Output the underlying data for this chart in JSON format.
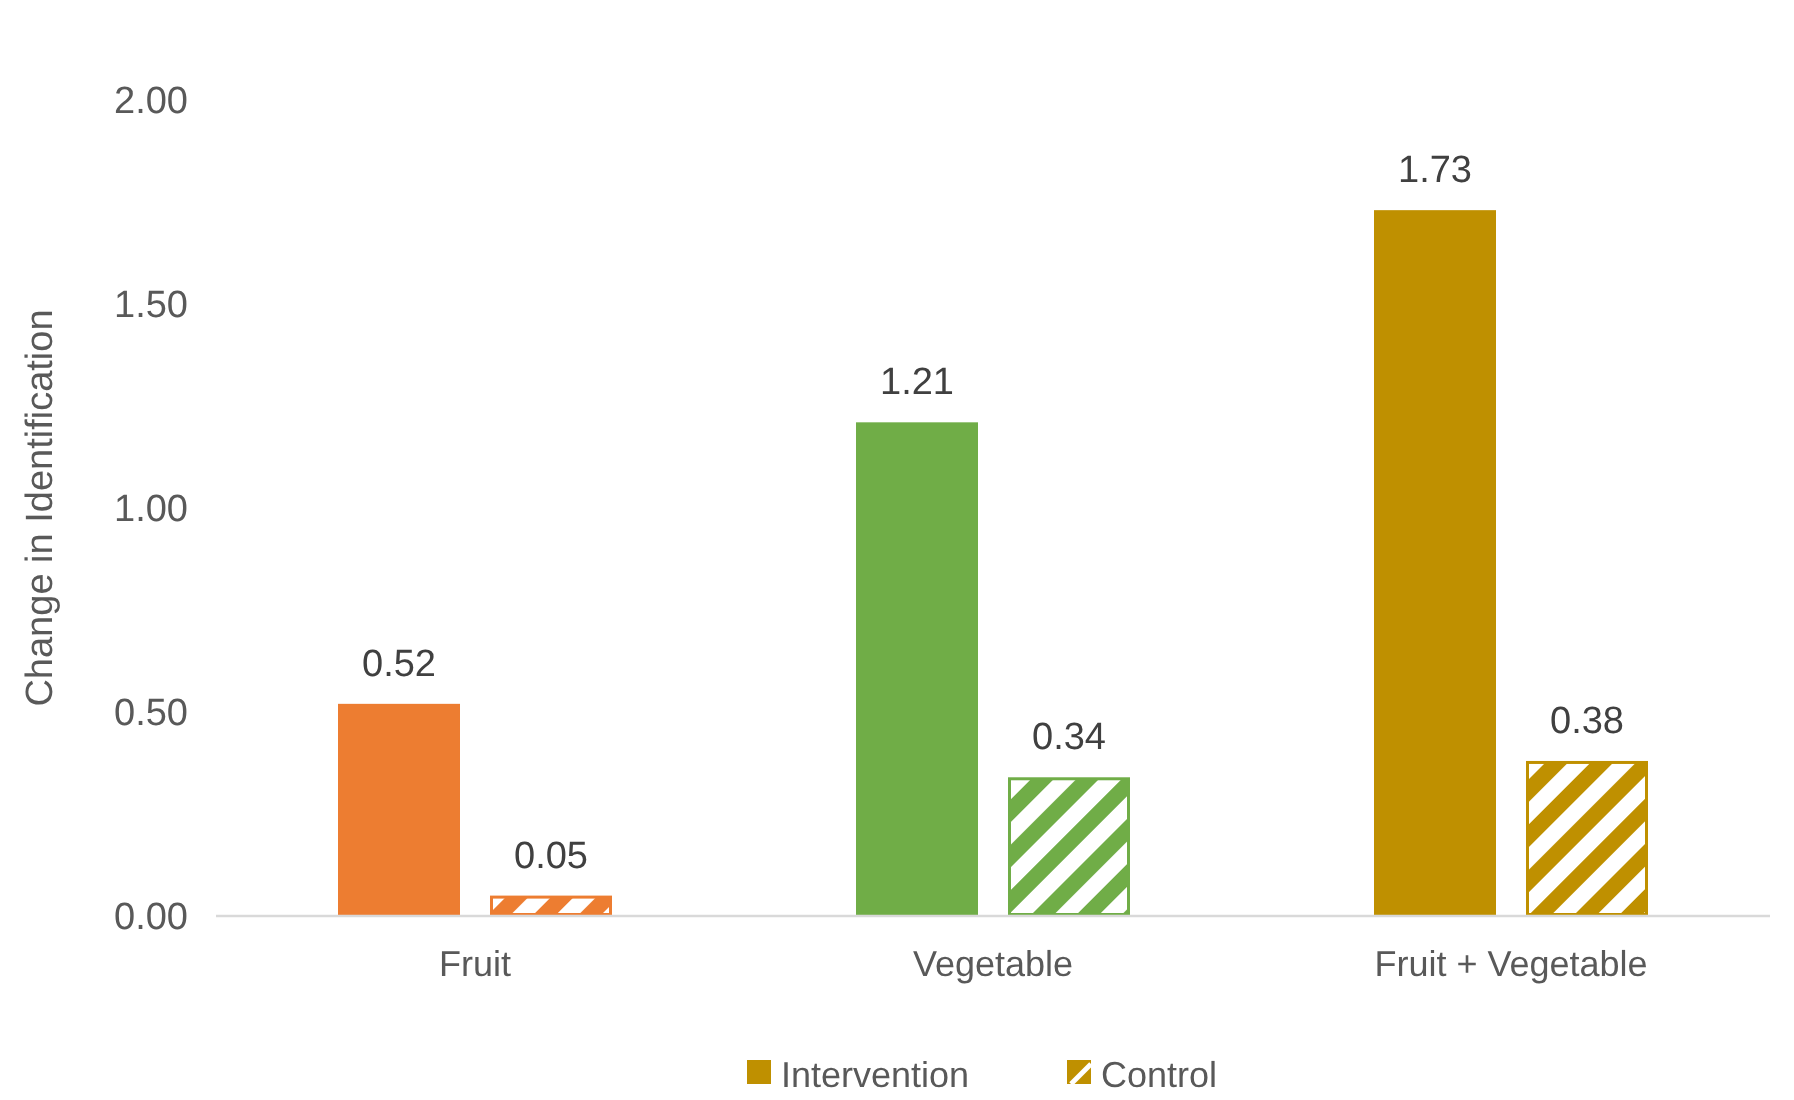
{
  "chart_data": {
    "type": "bar",
    "ylabel": "Change in Identification",
    "categories": [
      "Fruit",
      "Vegetable",
      "Fruit + Vegetable"
    ],
    "series": [
      {
        "name": "Intervention",
        "colors": [
          "#ed7d31",
          "#70ad47",
          "#bf9000"
        ],
        "color": "#bf9000",
        "values": [
          0.52,
          1.21,
          1.73
        ]
      },
      {
        "name": "Control",
        "colors": [
          "#ed7d31",
          "#70ad47",
          "#bf9000"
        ],
        "color": "#bf9000",
        "values": [
          0.05,
          0.34,
          0.38
        ]
      }
    ],
    "ylim": [
      0,
      2
    ],
    "yticks": [
      {
        "value": 0,
        "label": "0.00"
      },
      {
        "value": 0.5,
        "label": "0.50"
      },
      {
        "value": 1,
        "label": "1.00"
      },
      {
        "value": 1.5,
        "label": "1.50"
      },
      {
        "value": 2,
        "label": "2.00"
      }
    ],
    "data_labels": true,
    "legend": "bottom"
  }
}
